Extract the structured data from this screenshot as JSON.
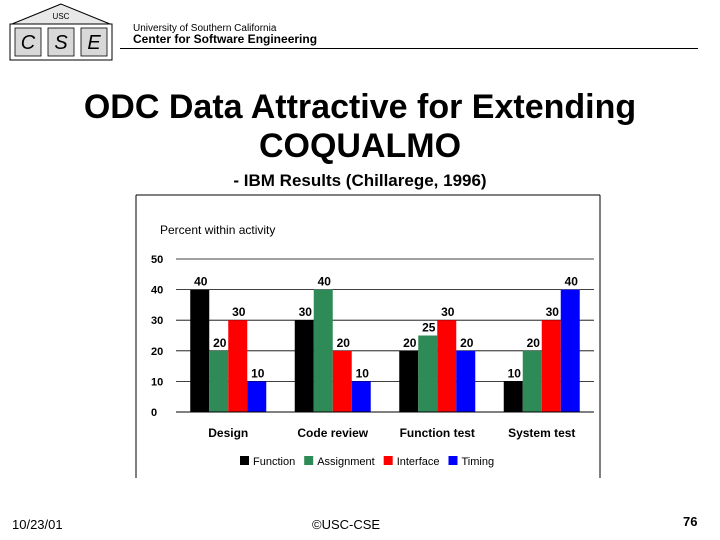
{
  "header": {
    "logo_letters": [
      "C",
      "S",
      "E"
    ],
    "logo_small": "USC",
    "university": "University of Southern California",
    "center": "Center for Software Engineering"
  },
  "slide": {
    "title_line1": "ODC Data Attractive for Extending",
    "title_line2": "COQUALMO",
    "subtitle": "- IBM Results (Chillarege, 1996)"
  },
  "footer": {
    "date": "10/23/01",
    "copyright": "©USC-CSE",
    "page": "76"
  },
  "chart_data": {
    "type": "bar",
    "title": "Percent within activity",
    "categories": [
      "Design",
      "Code review",
      "Function test",
      "System test"
    ],
    "series": [
      {
        "name": "Function",
        "values": [
          40,
          30,
          20,
          10
        ],
        "color": "#000000"
      },
      {
        "name": "Assignment",
        "values": [
          20,
          40,
          25,
          20
        ],
        "color": "#2e8b57"
      },
      {
        "name": "Interface",
        "values": [
          30,
          20,
          30,
          30
        ],
        "color": "#ff0000"
      },
      {
        "name": "Timing",
        "values": [
          10,
          10,
          20,
          40
        ],
        "color": "#0000ff"
      }
    ],
    "ylim": [
      0,
      50
    ],
    "yticks": [
      0,
      10,
      20,
      30,
      40,
      50
    ],
    "grid": true,
    "legend": "bottom"
  }
}
